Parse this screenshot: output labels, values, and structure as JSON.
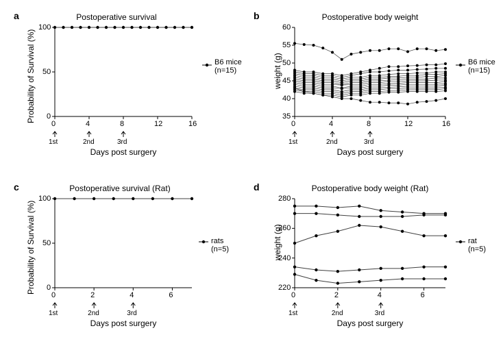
{
  "colors": {
    "bg": "#ffffff",
    "axis": "#000000",
    "line": "#404040",
    "marker": "#000000",
    "text": "#000000"
  },
  "fonts": {
    "panel_label": 14,
    "title": 12,
    "axis_label": 12,
    "tick": 11,
    "legend": 11,
    "arrow": 10
  },
  "panelA": {
    "label": "a",
    "title": "Postoperative survival",
    "ylabel": "Probability of Survival (%)",
    "xlabel": "Days post surgery",
    "legend": "B6 mice\n(n=15)",
    "type": "line",
    "x": [
      0,
      1,
      2,
      3,
      4,
      5,
      6,
      7,
      8,
      9,
      10,
      11,
      12,
      13,
      14,
      15,
      16
    ],
    "y": [
      100,
      100,
      100,
      100,
      100,
      100,
      100,
      100,
      100,
      100,
      100,
      100,
      100,
      100,
      100,
      100,
      100
    ],
    "xlim": [
      0,
      16
    ],
    "ylim": [
      0,
      100
    ],
    "xticks": [
      0,
      4,
      8,
      12,
      16
    ],
    "yticks": [
      0,
      50,
      100
    ],
    "arrows": [
      {
        "x": 0,
        "label": "1st"
      },
      {
        "x": 4,
        "label": "2nd"
      },
      {
        "x": 8,
        "label": "3rd"
      }
    ],
    "marker_radius": 2.2,
    "line_width": 1
  },
  "panelB": {
    "label": "b",
    "title": "Postoperative body weight",
    "ylabel": "weight (g)",
    "xlabel": "Days post surgery",
    "legend": "B6 mice\n(n=15)",
    "type": "multi-line",
    "x": [
      0,
      1,
      2,
      3,
      4,
      5,
      6,
      7,
      8,
      9,
      10,
      11,
      12,
      13,
      14,
      15,
      16
    ],
    "xlim": [
      0,
      16
    ],
    "ylim": [
      35,
      60
    ],
    "xticks": [
      0,
      4,
      8,
      12,
      16
    ],
    "yticks": [
      35,
      40,
      45,
      50,
      55,
      60
    ],
    "series": [
      [
        55.5,
        55.2,
        55.0,
        54.2,
        53.0,
        51.0,
        52.5,
        53.0,
        53.5,
        53.5,
        54.0,
        54.0,
        53.2,
        54.0,
        54.0,
        53.5,
        53.8
      ],
      [
        48.0,
        47.5,
        47.5,
        47.0,
        47.0,
        46.5,
        47.0,
        47.5,
        48.0,
        48.5,
        49.0,
        49.0,
        49.2,
        49.3,
        49.5,
        49.5,
        49.8
      ],
      [
        47.5,
        47.0,
        47.0,
        46.5,
        46.5,
        46.0,
        46.5,
        47.0,
        47.5,
        47.5,
        47.8,
        48.0,
        48.0,
        48.2,
        48.3,
        48.5,
        48.5
      ],
      [
        47.0,
        46.5,
        46.5,
        46.0,
        46.0,
        45.5,
        46.0,
        46.0,
        46.5,
        46.5,
        46.8,
        47.0,
        47.0,
        47.2,
        47.2,
        47.5,
        47.5
      ],
      [
        46.5,
        46.0,
        46.0,
        45.5,
        45.5,
        45.0,
        45.5,
        45.5,
        46.0,
        46.0,
        46.2,
        46.3,
        46.5,
        46.5,
        46.8,
        46.8,
        47.0
      ],
      [
        46.0,
        45.5,
        45.5,
        45.0,
        45.0,
        44.5,
        45.0,
        45.0,
        45.5,
        45.5,
        45.8,
        45.8,
        46.0,
        46.0,
        46.2,
        46.2,
        46.5
      ],
      [
        45.5,
        45.0,
        45.0,
        44.5,
        44.5,
        44.0,
        44.5,
        44.5,
        45.0,
        45.0,
        45.2,
        45.3,
        45.5,
        45.5,
        45.5,
        45.8,
        45.8
      ],
      [
        45.0,
        44.5,
        44.5,
        44.0,
        44.0,
        43.8,
        44.0,
        44.0,
        44.5,
        44.5,
        44.8,
        44.8,
        45.0,
        45.0,
        45.0,
        45.2,
        45.2
      ],
      [
        44.5,
        44.0,
        44.0,
        43.5,
        43.5,
        43.0,
        43.5,
        43.5,
        44.0,
        44.0,
        44.2,
        44.3,
        44.5,
        44.5,
        44.5,
        44.5,
        44.8
      ],
      [
        44.0,
        43.5,
        43.5,
        43.0,
        43.0,
        42.8,
        43.0,
        43.0,
        43.5,
        43.5,
        43.8,
        43.8,
        44.0,
        44.0,
        44.0,
        44.0,
        44.2
      ],
      [
        43.5,
        43.0,
        43.0,
        42.5,
        42.5,
        42.0,
        42.5,
        42.5,
        43.0,
        43.0,
        43.2,
        43.3,
        43.5,
        43.5,
        43.5,
        43.5,
        43.8
      ],
      [
        43.0,
        42.5,
        42.5,
        42.0,
        42.0,
        41.5,
        42.0,
        42.0,
        42.5,
        42.5,
        42.8,
        42.8,
        43.0,
        43.0,
        43.0,
        43.0,
        43.2
      ],
      [
        42.5,
        42.0,
        42.0,
        41.5,
        41.5,
        41.0,
        41.5,
        41.5,
        42.0,
        42.0,
        42.2,
        42.3,
        42.5,
        42.5,
        42.5,
        42.5,
        42.8
      ],
      [
        42.0,
        41.5,
        41.5,
        41.0,
        41.0,
        40.5,
        41.0,
        41.0,
        41.5,
        41.5,
        41.8,
        41.8,
        42.0,
        42.0,
        42.0,
        42.0,
        42.2
      ],
      [
        43.0,
        42.0,
        41.5,
        41.0,
        40.5,
        40.0,
        40.0,
        39.5,
        39.0,
        39.0,
        38.8,
        38.8,
        38.5,
        39.0,
        39.2,
        39.5,
        40.0
      ]
    ],
    "arrows": [
      {
        "x": 0,
        "label": "1st"
      },
      {
        "x": 4,
        "label": "2nd"
      },
      {
        "x": 8,
        "label": "3rd"
      }
    ],
    "marker_radius": 2.0,
    "line_width": 0.7
  },
  "panelC": {
    "label": "c",
    "title": "Postoperative survival (Rat)",
    "ylabel": "Probability of Survival (%)",
    "xlabel": "Days post surgery",
    "legend": "rats (n=5)",
    "type": "line",
    "x": [
      0,
      1,
      2,
      3,
      4,
      5,
      6,
      7
    ],
    "y": [
      100,
      100,
      100,
      100,
      100,
      100,
      100,
      100
    ],
    "xlim": [
      0,
      7
    ],
    "ylim": [
      0,
      100
    ],
    "xticks": [
      0,
      2,
      4,
      6
    ],
    "yticks": [
      0,
      50,
      100
    ],
    "arrows": [
      {
        "x": 0,
        "label": "1st"
      },
      {
        "x": 2,
        "label": "2nd"
      },
      {
        "x": 4,
        "label": "3rd"
      }
    ],
    "marker_radius": 2.2,
    "line_width": 1
  },
  "panelD": {
    "label": "d",
    "title": "Postoperative body weight (Rat)",
    "ylabel": "weight (g)",
    "xlabel": "Days post surgery",
    "legend": "rat (n=5)",
    "type": "multi-line",
    "x": [
      0,
      1,
      2,
      3,
      4,
      5,
      6,
      7
    ],
    "xlim": [
      0,
      7
    ],
    "ylim": [
      220,
      280
    ],
    "xticks": [
      0,
      2,
      4,
      6
    ],
    "yticks": [
      220,
      240,
      260,
      280
    ],
    "series": [
      [
        275,
        275,
        274,
        275,
        272,
        271,
        270,
        270
      ],
      [
        270,
        270,
        269,
        268,
        268,
        268,
        269,
        269
      ],
      [
        250,
        255,
        258,
        262,
        261,
        258,
        255,
        255
      ],
      [
        234,
        232,
        231,
        232,
        233,
        233,
        234,
        234
      ],
      [
        229,
        225,
        223,
        224,
        225,
        226,
        226,
        226
      ]
    ],
    "arrows": [
      {
        "x": 0,
        "label": "1st"
      },
      {
        "x": 2,
        "label": "2nd"
      },
      {
        "x": 4,
        "label": "3rd"
      }
    ],
    "marker_radius": 2.2,
    "line_width": 1
  }
}
